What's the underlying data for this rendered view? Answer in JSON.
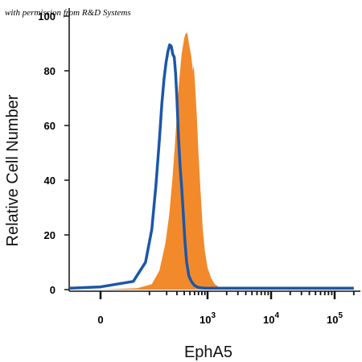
{
  "watermark": "with permission from R&D Systems",
  "colors": {
    "filled": "#F28A2B",
    "outline": "#1C57A8",
    "axis": "#111111"
  },
  "chart_data": {
    "type": "area",
    "title": "",
    "xlabel": "EphA5",
    "ylabel": "Relative Cell Number",
    "x_scale": "biexponential",
    "ylim": [
      0,
      100
    ],
    "y_ticks": [
      0,
      20,
      40,
      60,
      80,
      100
    ],
    "x_ticks": [
      {
        "value": 0,
        "label": "0"
      },
      {
        "value": 1000,
        "label": "10",
        "exp": "3"
      },
      {
        "value": 10000,
        "label": "10",
        "exp": "4"
      },
      {
        "value": 100000,
        "label": "10",
        "exp": "5"
      }
    ],
    "grid": false,
    "series": [
      {
        "style": "filled",
        "points": [
          [
            -1000,
            0
          ],
          [
            0,
            0
          ],
          [
            60,
            0.5
          ],
          [
            110,
            2
          ],
          [
            150,
            7
          ],
          [
            190,
            17
          ],
          [
            220,
            27
          ],
          [
            250,
            40
          ],
          [
            275,
            52
          ],
          [
            300,
            64
          ],
          [
            320,
            74
          ],
          [
            340,
            80
          ],
          [
            360,
            86
          ],
          [
            380,
            89
          ],
          [
            400,
            92
          ],
          [
            420,
            93.5
          ],
          [
            440,
            94
          ],
          [
            460,
            93
          ],
          [
            480,
            90
          ],
          [
            500,
            88
          ],
          [
            530,
            85
          ],
          [
            560,
            80
          ],
          [
            580,
            82
          ],
          [
            600,
            78
          ],
          [
            650,
            65
          ],
          [
            700,
            50
          ],
          [
            760,
            36
          ],
          [
            830,
            22
          ],
          [
            900,
            14
          ],
          [
            1000,
            8
          ],
          [
            1150,
            4
          ],
          [
            1300,
            2
          ],
          [
            1500,
            1
          ],
          [
            1800,
            0
          ],
          [
            200000,
            0
          ]
        ]
      },
      {
        "style": "outline",
        "points": [
          [
            -1000,
            0.5
          ],
          [
            -200,
            0.5
          ],
          [
            0,
            1
          ],
          [
            50,
            3
          ],
          [
            85,
            10
          ],
          [
            110,
            22
          ],
          [
            130,
            38
          ],
          [
            150,
            55
          ],
          [
            165,
            68
          ],
          [
            180,
            77
          ],
          [
            195,
            83
          ],
          [
            210,
            87
          ],
          [
            225,
            89.5
          ],
          [
            240,
            89
          ],
          [
            255,
            86
          ],
          [
            270,
            85
          ],
          [
            285,
            79
          ],
          [
            300,
            70
          ],
          [
            320,
            55
          ],
          [
            340,
            45
          ],
          [
            360,
            38
          ],
          [
            385,
            28
          ],
          [
            410,
            18
          ],
          [
            440,
            10
          ],
          [
            480,
            5
          ],
          [
            530,
            3
          ],
          [
            600,
            1.5
          ],
          [
            700,
            0.8
          ],
          [
            900,
            0.5
          ],
          [
            200000,
            0.5
          ]
        ]
      }
    ]
  }
}
